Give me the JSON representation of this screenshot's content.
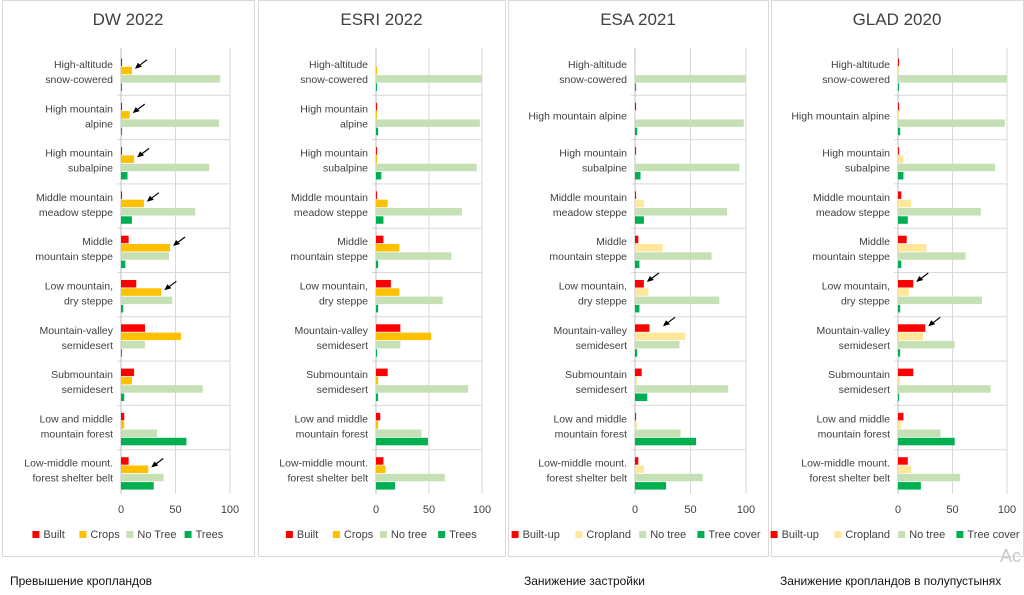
{
  "categories": [
    "High-altitude snow-cowered",
    "High mountain alpine",
    "High mountain subalpine",
    "Middle mountain meadow steppe",
    "Middle mountain steppe",
    "Low mountain, dry steppe",
    "Mountain-valley semidesert",
    "Submountain semidesert",
    "Low and middle mountain forest",
    "Low-middle mount. forest shelter belt"
  ],
  "colors": {
    "built": "#ff0000",
    "crops": "#ffc000",
    "no_tree": "#c5e0b4",
    "trees": "#00b050",
    "crops_pale": "#ffe699",
    "border": "#d9d9d9",
    "gridline": "#d9d9d9"
  },
  "chart_data": [
    {
      "type": "bar",
      "orientation": "horizontal",
      "title": "DW 2022",
      "xlim": [
        0,
        100
      ],
      "x_ticks": [
        "0",
        "50",
        "100"
      ],
      "series": [
        {
          "name": "Built",
          "values": [
            1,
            1,
            1,
            1,
            7,
            14,
            22,
            12,
            3,
            7
          ]
        },
        {
          "name": "Crops",
          "values": [
            10,
            8,
            12,
            21,
            45,
            37,
            55,
            10,
            3,
            25
          ]
        },
        {
          "name": "No Tree",
          "values": [
            91,
            90,
            81,
            68,
            44,
            47,
            22,
            75,
            33,
            39
          ]
        },
        {
          "name": "Trees",
          "values": [
            1,
            1,
            6,
            10,
            4,
            2,
            1,
            3,
            60,
            30
          ]
        }
      ],
      "arrows_at": [
        0,
        1,
        2,
        3,
        4,
        5,
        9
      ]
    },
    {
      "type": "bar",
      "orientation": "horizontal",
      "title": "ESRI 2022",
      "xlim": [
        0,
        100
      ],
      "x_ticks": [
        "0",
        "50",
        "100"
      ],
      "series": [
        {
          "name": "Built",
          "values": [
            0,
            1,
            1,
            1,
            7,
            14,
            23,
            11,
            4,
            7
          ]
        },
        {
          "name": "Crops",
          "values": [
            1,
            1,
            1,
            11,
            22,
            22,
            52,
            2,
            2,
            9
          ]
        },
        {
          "name": "No tree",
          "values": [
            100,
            98,
            95,
            81,
            71,
            63,
            23,
            87,
            43,
            65
          ]
        },
        {
          "name": "Trees",
          "values": [
            1,
            2,
            5,
            7,
            2,
            2,
            1,
            2,
            49,
            18
          ]
        }
      ],
      "arrows_at": []
    },
    {
      "type": "bar",
      "orientation": "horizontal",
      "title": "ESA 2021",
      "xlim": [
        0,
        100
      ],
      "x_ticks": [
        "0",
        "50",
        "100"
      ],
      "series": [
        {
          "name": "Built-up",
          "values": [
            0,
            1,
            1,
            1,
            3,
            8,
            13,
            6,
            1,
            3
          ]
        },
        {
          "name": "Cropland",
          "values": [
            1,
            1,
            1,
            8,
            25,
            12,
            45,
            2,
            2,
            8
          ]
        },
        {
          "name": "No tree",
          "values": [
            100,
            98,
            94,
            83,
            69,
            76,
            40,
            84,
            41,
            61
          ]
        },
        {
          "name": "Tree cover",
          "values": [
            1,
            2,
            5,
            8,
            4,
            4,
            2,
            11,
            55,
            28
          ]
        }
      ],
      "arrows_at": [
        5,
        6
      ]
    },
    {
      "type": "bar",
      "orientation": "horizontal",
      "title": "GLAD 2020",
      "xlim": [
        0,
        100
      ],
      "x_ticks": [
        "0",
        "50",
        "100"
      ],
      "series": [
        {
          "name": "Built-up",
          "values": [
            1,
            1,
            1,
            3,
            8,
            14,
            25,
            14,
            5,
            9
          ]
        },
        {
          "name": "Cropland",
          "values": [
            1,
            1,
            5,
            12,
            26,
            10,
            23,
            2,
            3,
            12
          ]
        },
        {
          "name": "No tree",
          "values": [
            100,
            98,
            89,
            76,
            62,
            77,
            52,
            85,
            39,
            57
          ]
        },
        {
          "name": "Tree cover",
          "values": [
            1,
            2,
            5,
            9,
            3,
            2,
            2,
            1,
            52,
            21
          ]
        }
      ],
      "arrows_at": [
        5,
        6
      ]
    }
  ],
  "captions": [
    "Превышение кропландов",
    "Занижение застройки",
    "Занижение кропландов в полупустынях"
  ],
  "watermark": "Ac"
}
